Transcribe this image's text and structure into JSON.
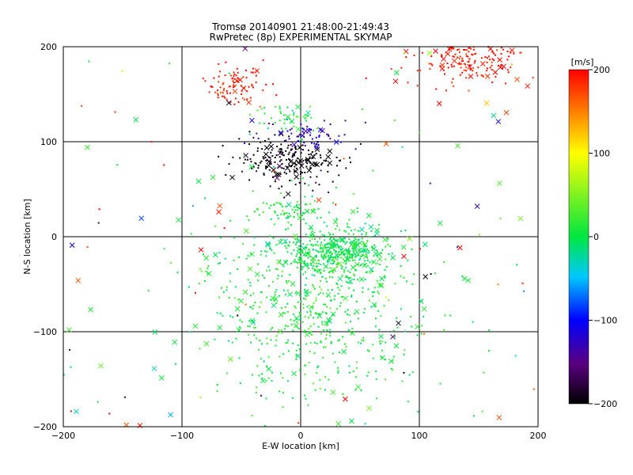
{
  "chart_data": {
    "type": "scatter",
    "title": "Tromsø 20140901 21:48:00-21:49:43",
    "subtitle": "RwPretec (8p) EXPERIMENTAL SKYMAP",
    "xlabel": "E-W location [km]",
    "ylabel": "N-S location [km]",
    "xlim": [
      -200,
      200
    ],
    "ylim": [
      -200,
      200
    ],
    "xticks": [
      "−200",
      "−100",
      "0",
      "100",
      "200"
    ],
    "yticks": [
      "−200",
      "−100",
      "0",
      "100",
      "200"
    ],
    "grid": true,
    "colorbar": {
      "label": "[m/s]",
      "range": [
        -200,
        200
      ],
      "ticks": [
        "200",
        "100",
        "0",
        "−100",
        "−200"
      ]
    },
    "clusters": [
      {
        "region": "north-west",
        "x": -55,
        "y": 160,
        "sx": 12,
        "sy": 10,
        "velocity": 190,
        "count": 90
      },
      {
        "region": "north-east",
        "x": 140,
        "y": 190,
        "sx": 25,
        "sy": 15,
        "velocity": 195,
        "count": 220
      },
      {
        "region": "north-center",
        "x": -10,
        "y": 80,
        "sx": 25,
        "sy": 12,
        "velocity": -200,
        "count": 220
      },
      {
        "region": "north-center-upper",
        "x": 5,
        "y": 105,
        "sx": 20,
        "sy": 8,
        "velocity": -120,
        "count": 60
      },
      {
        "region": "center-upper",
        "x": -10,
        "y": 125,
        "sx": 15,
        "sy": 8,
        "velocity": 10,
        "count": 50
      },
      {
        "region": "center-mid",
        "x": -10,
        "y": 28,
        "sx": 12,
        "sy": 6,
        "velocity": 5,
        "count": 60
      },
      {
        "region": "center",
        "x": 30,
        "y": -15,
        "sx": 22,
        "sy": 12,
        "velocity": 0,
        "count": 380
      },
      {
        "region": "south",
        "x": 10,
        "y": -70,
        "sx": 45,
        "sy": 50,
        "velocity": 10,
        "count": 650
      }
    ]
  }
}
